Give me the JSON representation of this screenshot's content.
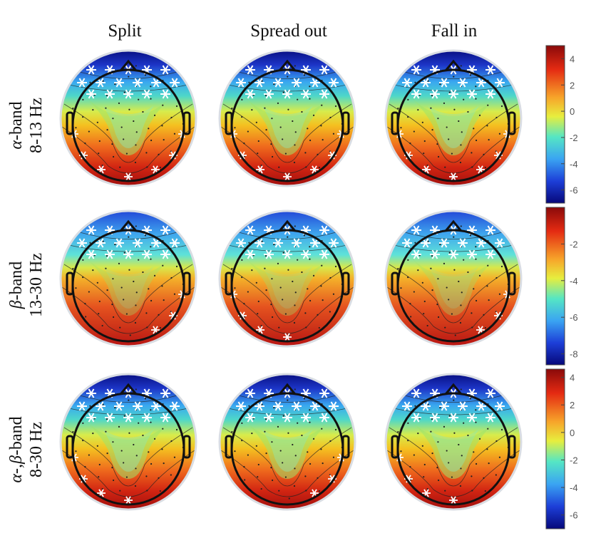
{
  "columns": [
    "Split",
    "Spread out",
    "Fall in"
  ],
  "rows": [
    {
      "band_greek": "α",
      "band_text": "-band",
      "range": "8-13 Hz"
    },
    {
      "band_greek": "β",
      "band_text": "-band",
      "range": "13-30 Hz"
    },
    {
      "band_greek": "α-,β",
      "band_text": "-band",
      "range": "8-30 Hz"
    }
  ],
  "colorbars": [
    {
      "ticks": [
        "4",
        "2",
        "0",
        "-2",
        "-4",
        "-6"
      ],
      "min": -7,
      "max": 5
    },
    {
      "ticks": [
        "-2",
        "-4",
        "-6",
        "-8"
      ],
      "min": -8.6,
      "max": 0
    },
    {
      "ticks": [
        "4",
        "2",
        "0",
        "-2",
        "-4",
        "-6"
      ],
      "min": -7,
      "max": 4.6
    }
  ],
  "colors": {
    "high": "#9b0d0d",
    "mid_high": "#f4c020",
    "zero": "#4ed7c9",
    "low": "#1d36c8",
    "lowest": "#050a7a",
    "marker": "#ffffff"
  }
}
